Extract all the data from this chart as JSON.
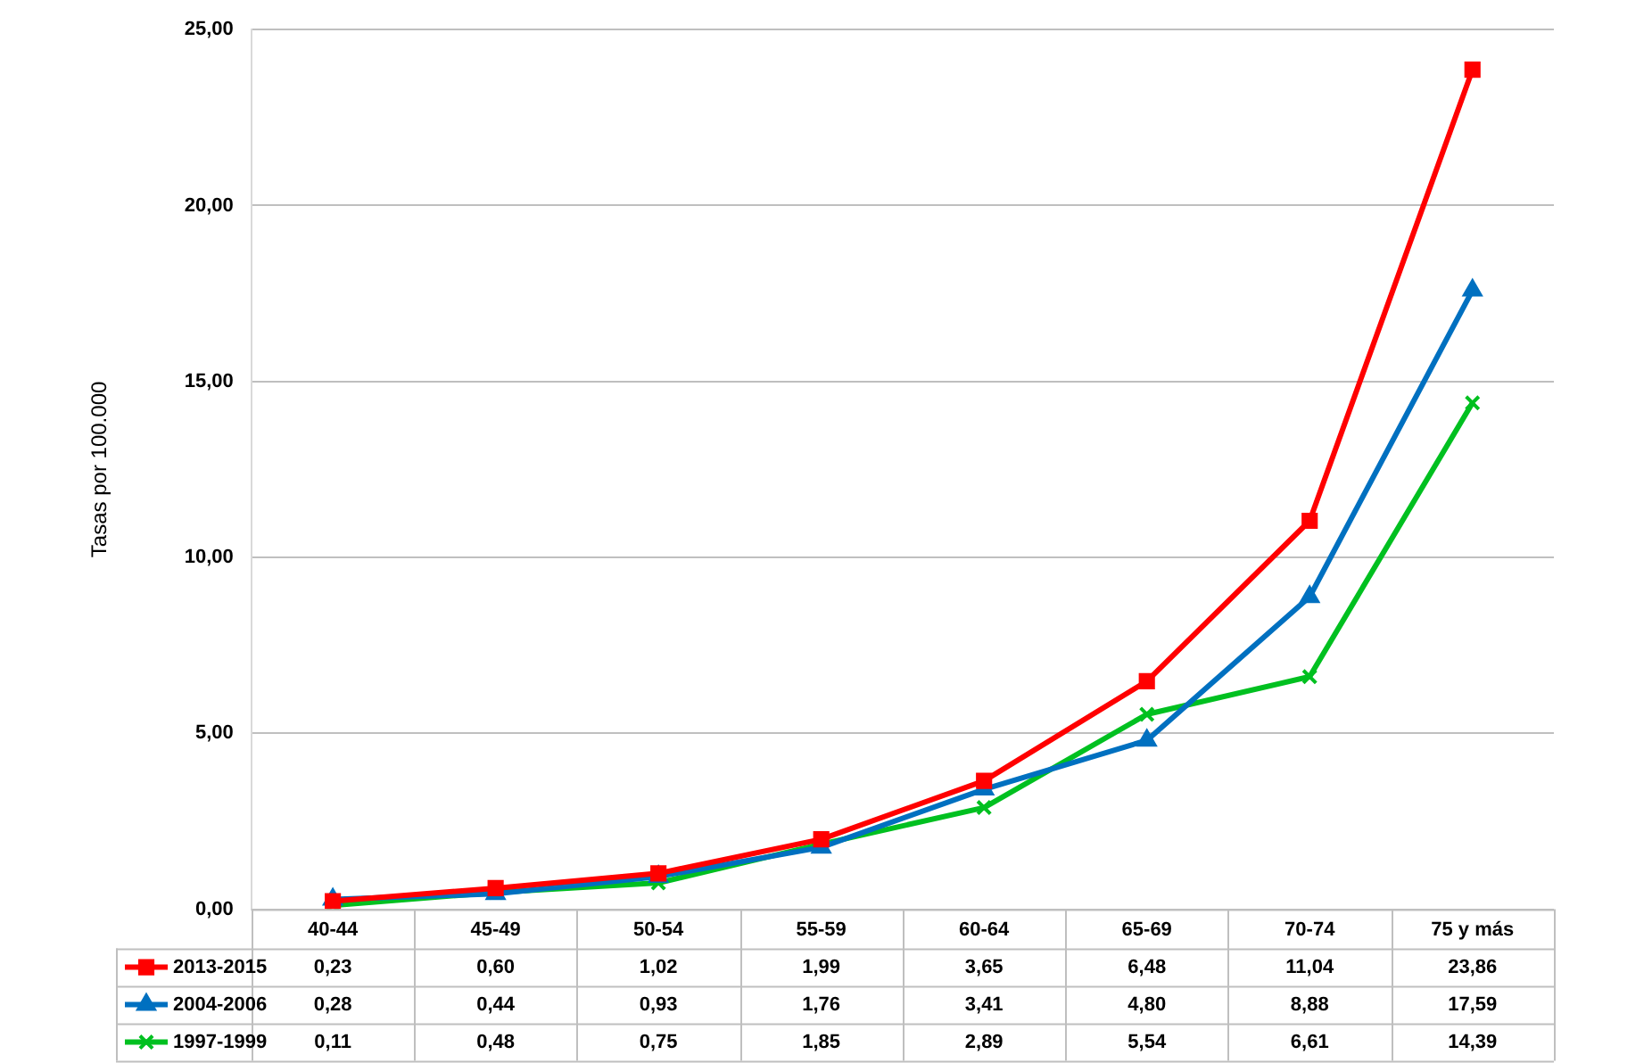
{
  "chart_data": {
    "type": "line",
    "ylabel": "Tasas por 100.000",
    "categories": [
      "40-44",
      "45-49",
      "50-54",
      "55-59",
      "60-64",
      "65-69",
      "70-74",
      "75 y más"
    ],
    "series": [
      {
        "name": "2013-2015",
        "color": "#ff0000",
        "marker": "square",
        "values": [
          0.23,
          0.6,
          1.02,
          1.99,
          3.65,
          6.48,
          11.04,
          23.86
        ],
        "value_labels": [
          "0,23",
          "0,60",
          "1,02",
          "1,99",
          "3,65",
          "6,48",
          "11,04",
          "23,86"
        ]
      },
      {
        "name": "2004-2006",
        "color": "#0070c0",
        "marker": "triangle",
        "values": [
          0.28,
          0.44,
          0.93,
          1.76,
          3.41,
          4.8,
          8.88,
          17.59
        ],
        "value_labels": [
          "0,28",
          "0,44",
          "0,93",
          "1,76",
          "3,41",
          "4,80",
          "8,88",
          "17,59"
        ]
      },
      {
        "name": "1997-1999",
        "color": "#00c020",
        "marker": "cross",
        "values": [
          0.11,
          0.48,
          0.75,
          1.85,
          2.89,
          5.54,
          6.61,
          14.39
        ],
        "value_labels": [
          "0,11",
          "0,48",
          "0,75",
          "1,85",
          "2,89",
          "5,54",
          "6,61",
          "14,39"
        ]
      }
    ],
    "ylim": [
      0,
      25
    ],
    "yticks": [
      {
        "value": 0,
        "label": "0,00"
      },
      {
        "value": 5,
        "label": "5,00"
      },
      {
        "value": 10,
        "label": "10,00"
      },
      {
        "value": 15,
        "label": "15,00"
      },
      {
        "value": 20,
        "label": "20,00"
      },
      {
        "value": 25,
        "label": "25,00"
      }
    ],
    "grid": "y",
    "legend": "bottom",
    "line_style": "solid"
  }
}
